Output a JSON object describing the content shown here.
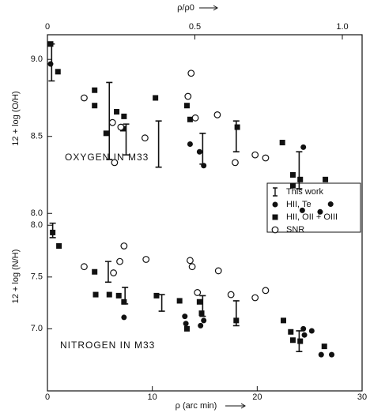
{
  "chart_data": [
    {
      "type": "scatter",
      "ylabel": "12 + log (O/H)",
      "label": "OXYGEN IN M33",
      "x2label": "ρ/ρ0",
      "x2lim": [
        0,
        1
      ],
      "x2ticks": [
        0,
        0.5,
        {
          "value": 1,
          "label": "1.0"
        }
      ],
      "xlim": [
        0,
        30
      ],
      "ylim": [
        7.95,
        9.16
      ],
      "yticks": [
        {
          "value": 8,
          "label": "8.0"
        },
        8.5,
        {
          "value": 9,
          "label": "9.0"
        }
      ],
      "legend": "right",
      "series": [
        {
          "name": "This work",
          "marker": "bar",
          "color": "#111",
          "x": [
            0.4,
            5.9,
            7.5,
            10.6,
            14.8,
            18,
            24
          ],
          "values": [
            8.98,
            8.6,
            8.48,
            8.45,
            8.42,
            8.5,
            8.28
          ],
          "errors": [
            0.12,
            0.25,
            0.1,
            0.15,
            0.1,
            0.1,
            0.12
          ]
        },
        {
          "name": "HII, Te",
          "marker": "filled-circle",
          "color": "#111",
          "x": [
            0.3,
            13.6,
            14.5,
            14.9,
            24.3,
            24.4,
            26,
            27
          ],
          "values": [
            8.97,
            8.45,
            8.4,
            8.31,
            8.02,
            8.43,
            8.01,
            8.06
          ]
        },
        {
          "name": "HII, OII + OIII",
          "marker": "square",
          "color": "#111",
          "x": [
            0.3,
            1,
            4.5,
            4.5,
            5.6,
            6.6,
            7.3,
            7.2,
            10.3,
            13.3,
            13.6,
            18.1,
            22.4,
            23.4,
            23.4,
            24.1,
            26.5
          ],
          "values": [
            9.1,
            8.92,
            8.8,
            8.7,
            8.52,
            8.66,
            8.63,
            8.55,
            8.75,
            8.7,
            8.61,
            8.56,
            8.46,
            8.25,
            8.18,
            8.22,
            8.22
          ]
        },
        {
          "name": "SNR",
          "marker": "open-circle",
          "color": "#111",
          "x": [
            3.5,
            6.2,
            6.4,
            7,
            9.3,
            13.4,
            13.7,
            14.1,
            16.2,
            17.9,
            19.8,
            20.8
          ],
          "values": [
            8.75,
            8.59,
            8.33,
            8.56,
            8.49,
            8.76,
            8.91,
            8.62,
            8.64,
            8.33,
            8.38,
            8.36
          ]
        }
      ]
    },
    {
      "type": "scatter",
      "ylabel": "12 + log (N/H)",
      "label": "NITROGEN IN M33",
      "xlabel": "ρ (arc min)",
      "xlim": [
        0,
        30
      ],
      "xticks": [
        0,
        10,
        20,
        30
      ],
      "ylim": [
        6.4,
        8.04
      ],
      "yticks": [
        {
          "value": 7,
          "label": "7.0"
        },
        7.5,
        {
          "value": 8,
          "label": "8.0"
        }
      ],
      "series": [
        {
          "marker": "bar",
          "color": "#111",
          "x": [
            0.5,
            5.8,
            7.4,
            10.9,
            14.8,
            18,
            24
          ],
          "values": [
            7.95,
            7.55,
            7.32,
            7.25,
            7.22,
            7.15,
            6.88
          ],
          "errors": [
            0.07,
            0.1,
            0.08,
            0.08,
            0.1,
            0.12,
            0.1
          ]
        },
        {
          "marker": "filled-circle",
          "color": "#111",
          "x": [
            7.3,
            13.1,
            13.2,
            14.6,
            14.9,
            24.4,
            24.5,
            25.2,
            26.1,
            27.1
          ],
          "values": [
            7.11,
            7.12,
            7.05,
            7.03,
            7.08,
            7.0,
            6.94,
            6.98,
            6.75,
            6.75
          ]
        },
        {
          "marker": "square",
          "color": "#111",
          "x": [
            0.5,
            1.1,
            4.5,
            4.6,
            5.9,
            6.8,
            7.3,
            10.4,
            12.6,
            13.3,
            14.5,
            14.7,
            18,
            22.5,
            23.2,
            23.4,
            24.1,
            26.4
          ],
          "values": [
            7.93,
            7.8,
            7.55,
            7.33,
            7.33,
            7.32,
            7.26,
            7.32,
            7.27,
            7.0,
            7.26,
            7.15,
            7.08,
            7.08,
            6.97,
            6.89,
            6.88,
            6.83
          ]
        },
        {
          "marker": "open-circle",
          "color": "#111",
          "x": [
            3.5,
            6.3,
            6.9,
            7.3,
            9.4,
            13.6,
            13.8,
            14.3,
            16.3,
            17.5,
            19.8,
            20.8
          ],
          "values": [
            7.6,
            7.54,
            7.65,
            7.8,
            7.67,
            7.66,
            7.6,
            7.35,
            7.56,
            7.33,
            7.3,
            7.37
          ]
        }
      ]
    }
  ]
}
